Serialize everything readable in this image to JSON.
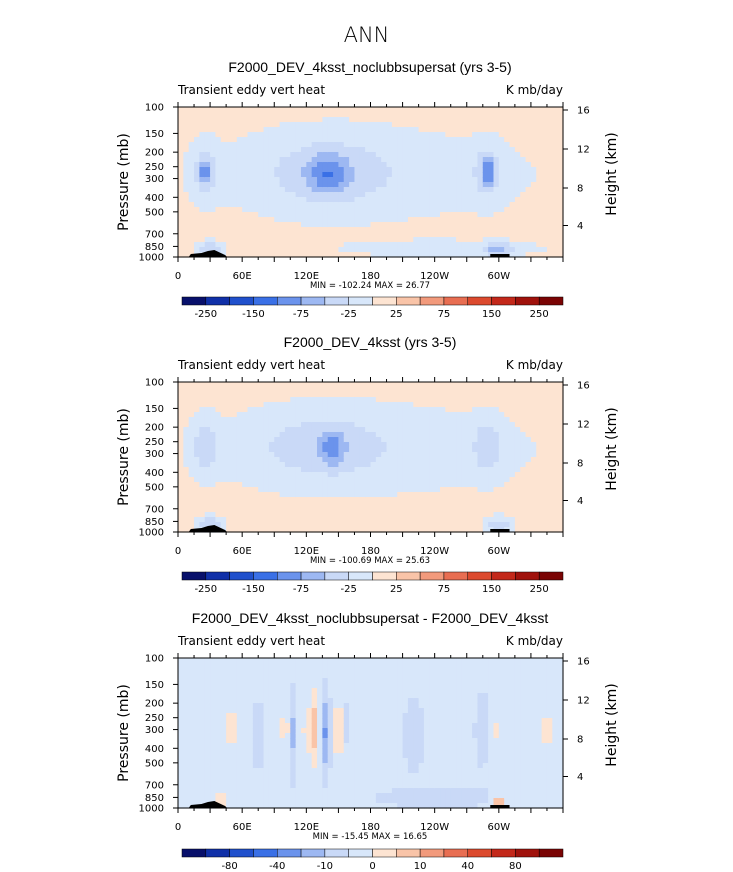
{
  "figure_title": "ANN",
  "chart_data": [
    {
      "type": "heatmap",
      "title": "F2000_DEV_4ksst_noclubbsupersat (yrs 3-5)",
      "left_label": "Transient eddy vert heat",
      "right_label": "K mb/day",
      "xlabel": "",
      "ylabel": "Pressure (mb)",
      "ylabel_right": "Height (km)",
      "x_ticks": [
        "0",
        "60E",
        "120E",
        "180",
        "120W",
        "60W"
      ],
      "x_tick_values": [
        0,
        60,
        120,
        180,
        240,
        300
      ],
      "xlim": [
        0,
        360
      ],
      "y_ticks": [
        "100",
        "150",
        "200",
        "250",
        "300",
        "400",
        "500",
        "700",
        "850",
        "1000"
      ],
      "y_tick_values": [
        100,
        150,
        200,
        250,
        300,
        400,
        500,
        700,
        850,
        1000
      ],
      "ylim": [
        1000,
        100
      ],
      "height_ticks": [
        "16",
        "12",
        "8",
        "4"
      ],
      "min_max": "MIN = -102.24   MAX =  26.77",
      "background_value": 10,
      "blobs": [
        {
          "lon": 180,
          "p": 280,
          "rlon": 175,
          "rp": 0.75,
          "v": -22
        },
        {
          "lon": 140,
          "p": 270,
          "rlon": 60,
          "rp": 0.55,
          "v": -35
        },
        {
          "lon": 140,
          "p": 280,
          "rlon": 18,
          "rp": 0.28,
          "v": -58
        },
        {
          "lon": 25,
          "p": 270,
          "rlon": 12,
          "rp": 0.4,
          "v": -45
        },
        {
          "lon": 25,
          "p": 270,
          "rlon": 4,
          "rp": 0.18,
          "v": -65
        },
        {
          "lon": 290,
          "p": 270,
          "rlon": 14,
          "rp": 0.4,
          "v": -45
        },
        {
          "lon": 290,
          "p": 270,
          "rlon": 5,
          "rp": 0.18,
          "v": -62
        },
        {
          "lon": 250,
          "p": 880,
          "rlon": 90,
          "rp": 0.12,
          "v": -28
        },
        {
          "lon": 30,
          "p": 900,
          "rlon": 12,
          "rp": 0.12,
          "v": -60
        },
        {
          "lon": 300,
          "p": 900,
          "rlon": 12,
          "rp": 0.12,
          "v": -55
        }
      ],
      "colorbar": {
        "labels": [
          "-250",
          "-150",
          "-75",
          "-25",
          "25",
          "75",
          "150",
          "250"
        ],
        "colors": [
          "#08106b",
          "#1030a8",
          "#2050cc",
          "#3a70e6",
          "#6b93ec",
          "#9db8f2",
          "#c9d9f7",
          "#d8e7fa",
          "#fde4d2",
          "#f9c4a8",
          "#f29a7c",
          "#e86e52",
          "#dc4a2e",
          "#c3281a",
          "#a0120c",
          "#7a0404"
        ],
        "thresholds": [
          -300,
          -250,
          -200,
          -150,
          -100,
          -75,
          -50,
          -25,
          0,
          25,
          50,
          75,
          100,
          150,
          200,
          250
        ]
      }
    },
    {
      "type": "heatmap",
      "title": "F2000_DEV_4ksst (yrs 3-5)",
      "left_label": "Transient eddy vert heat",
      "right_label": "K mb/day",
      "xlabel": "",
      "ylabel": "Pressure (mb)",
      "ylabel_right": "Height (km)",
      "x_ticks": [
        "0",
        "60E",
        "120E",
        "180",
        "120W",
        "60W"
      ],
      "x_tick_values": [
        0,
        60,
        120,
        180,
        240,
        300
      ],
      "xlim": [
        0,
        360
      ],
      "y_ticks": [
        "100",
        "150",
        "200",
        "250",
        "300",
        "400",
        "500",
        "700",
        "850",
        "1000"
      ],
      "y_tick_values": [
        100,
        150,
        200,
        250,
        300,
        400,
        500,
        700,
        850,
        1000
      ],
      "ylim": [
        1000,
        100
      ],
      "height_ticks": [
        "16",
        "12",
        "8",
        "4"
      ],
      "min_max": "MIN = -100.69   MAX =  25.63",
      "background_value": 10,
      "blobs": [
        {
          "lon": 180,
          "p": 280,
          "rlon": 175,
          "rp": 0.75,
          "v": -22
        },
        {
          "lon": 135,
          "p": 270,
          "rlon": 60,
          "rp": 0.5,
          "v": -35
        },
        {
          "lon": 145,
          "p": 275,
          "rlon": 10,
          "rp": 0.25,
          "v": -55
        },
        {
          "lon": 25,
          "p": 270,
          "rlon": 12,
          "rp": 0.4,
          "v": -45
        },
        {
          "lon": 290,
          "p": 270,
          "rlon": 14,
          "rp": 0.4,
          "v": -45
        },
        {
          "lon": 30,
          "p": 900,
          "rlon": 12,
          "rp": 0.12,
          "v": -60
        },
        {
          "lon": 300,
          "p": 900,
          "rlon": 12,
          "rp": 0.12,
          "v": -55
        }
      ],
      "colorbar": {
        "labels": [
          "-250",
          "-150",
          "-75",
          "-25",
          "25",
          "75",
          "150",
          "250"
        ],
        "colors": [
          "#08106b",
          "#1030a8",
          "#2050cc",
          "#3a70e6",
          "#6b93ec",
          "#9db8f2",
          "#c9d9f7",
          "#d8e7fa",
          "#fde4d2",
          "#f9c4a8",
          "#f29a7c",
          "#e86e52",
          "#dc4a2e",
          "#c3281a",
          "#a0120c",
          "#7a0404"
        ],
        "thresholds": [
          -300,
          -250,
          -200,
          -150,
          -100,
          -75,
          -50,
          -25,
          0,
          25,
          50,
          75,
          100,
          150,
          200,
          250
        ]
      }
    },
    {
      "type": "heatmap",
      "title": "F2000_DEV_4ksst_noclubbsupersat - F2000_DEV_4ksst",
      "left_label": "Transient eddy vert heat",
      "right_label": "K mb/day",
      "xlabel": "",
      "ylabel": "Pressure (mb)",
      "ylabel_right": "Height (km)",
      "x_ticks": [
        "0",
        "60E",
        "120E",
        "180",
        "120W",
        "60W"
      ],
      "x_tick_values": [
        0,
        60,
        120,
        180,
        240,
        300
      ],
      "xlim": [
        0,
        360
      ],
      "y_ticks": [
        "100",
        "150",
        "200",
        "250",
        "300",
        "400",
        "500",
        "700",
        "850",
        "1000"
      ],
      "y_tick_values": [
        100,
        150,
        200,
        250,
        300,
        400,
        500,
        700,
        850,
        1000
      ],
      "ylim": [
        1000,
        100
      ],
      "height_ticks": [
        "16",
        "12",
        "8",
        "4"
      ],
      "min_max": "MIN = -15.45   MAX =  16.65",
      "background_value": 1,
      "blobs": [
        {
          "lon": 50,
          "p": 300,
          "rlon": 6,
          "rp": 0.5,
          "v": 6
        },
        {
          "lon": 75,
          "p": 330,
          "rlon": 5,
          "rp": 0.5,
          "v": -4
        },
        {
          "lon": 100,
          "p": 300,
          "rlon": 7,
          "rp": 0.5,
          "v": 5
        },
        {
          "lon": 108,
          "p": 320,
          "rlon": 3,
          "rp": 0.55,
          "v": -9
        },
        {
          "lon": 120,
          "p": 300,
          "rlon": 3,
          "rp": 0.55,
          "v": 8
        },
        {
          "lon": 128,
          "p": 300,
          "rlon": 4,
          "rp": 0.6,
          "v": 12
        },
        {
          "lon": 138,
          "p": 320,
          "rlon": 4,
          "rp": 0.55,
          "v": -12
        },
        {
          "lon": 150,
          "p": 300,
          "rlon": 4,
          "rp": 0.5,
          "v": 7
        },
        {
          "lon": 158,
          "p": 290,
          "rlon": 3,
          "rp": 0.45,
          "v": -5
        },
        {
          "lon": 175,
          "p": 330,
          "rlon": 25,
          "rp": 0.6,
          "v": 4
        },
        {
          "lon": 220,
          "p": 330,
          "rlon": 10,
          "rp": 0.5,
          "v": -4
        },
        {
          "lon": 285,
          "p": 300,
          "rlon": 6,
          "rp": 0.5,
          "v": -5
        },
        {
          "lon": 295,
          "p": 300,
          "rlon": 6,
          "rp": 0.5,
          "v": 5
        },
        {
          "lon": 345,
          "p": 300,
          "rlon": 10,
          "rp": 0.5,
          "v": 5
        },
        {
          "lon": 300,
          "p": 920,
          "rlon": 5,
          "rp": 0.1,
          "v": 18
        },
        {
          "lon": 40,
          "p": 900,
          "rlon": 8,
          "rp": 0.15,
          "v": 8
        },
        {
          "lon": 240,
          "p": 850,
          "rlon": 60,
          "rp": 0.15,
          "v": -3
        }
      ],
      "colorbar": {
        "labels": [
          "-80",
          "-40",
          "-10",
          "0",
          "10",
          "40",
          "80"
        ],
        "colors": [
          "#08106b",
          "#1030a8",
          "#2050cc",
          "#3a70e6",
          "#6b93ec",
          "#9db8f2",
          "#c9d9f7",
          "#d8e7fa",
          "#fde4d2",
          "#f9c4a8",
          "#f29a7c",
          "#e86e52",
          "#dc4a2e",
          "#c3281a",
          "#a0120c",
          "#7a0404"
        ],
        "thresholds": [
          -100,
          -80,
          -60,
          -40,
          -20,
          -10,
          -5,
          0,
          5,
          10,
          20,
          40,
          60,
          80,
          100
        ]
      }
    }
  ]
}
